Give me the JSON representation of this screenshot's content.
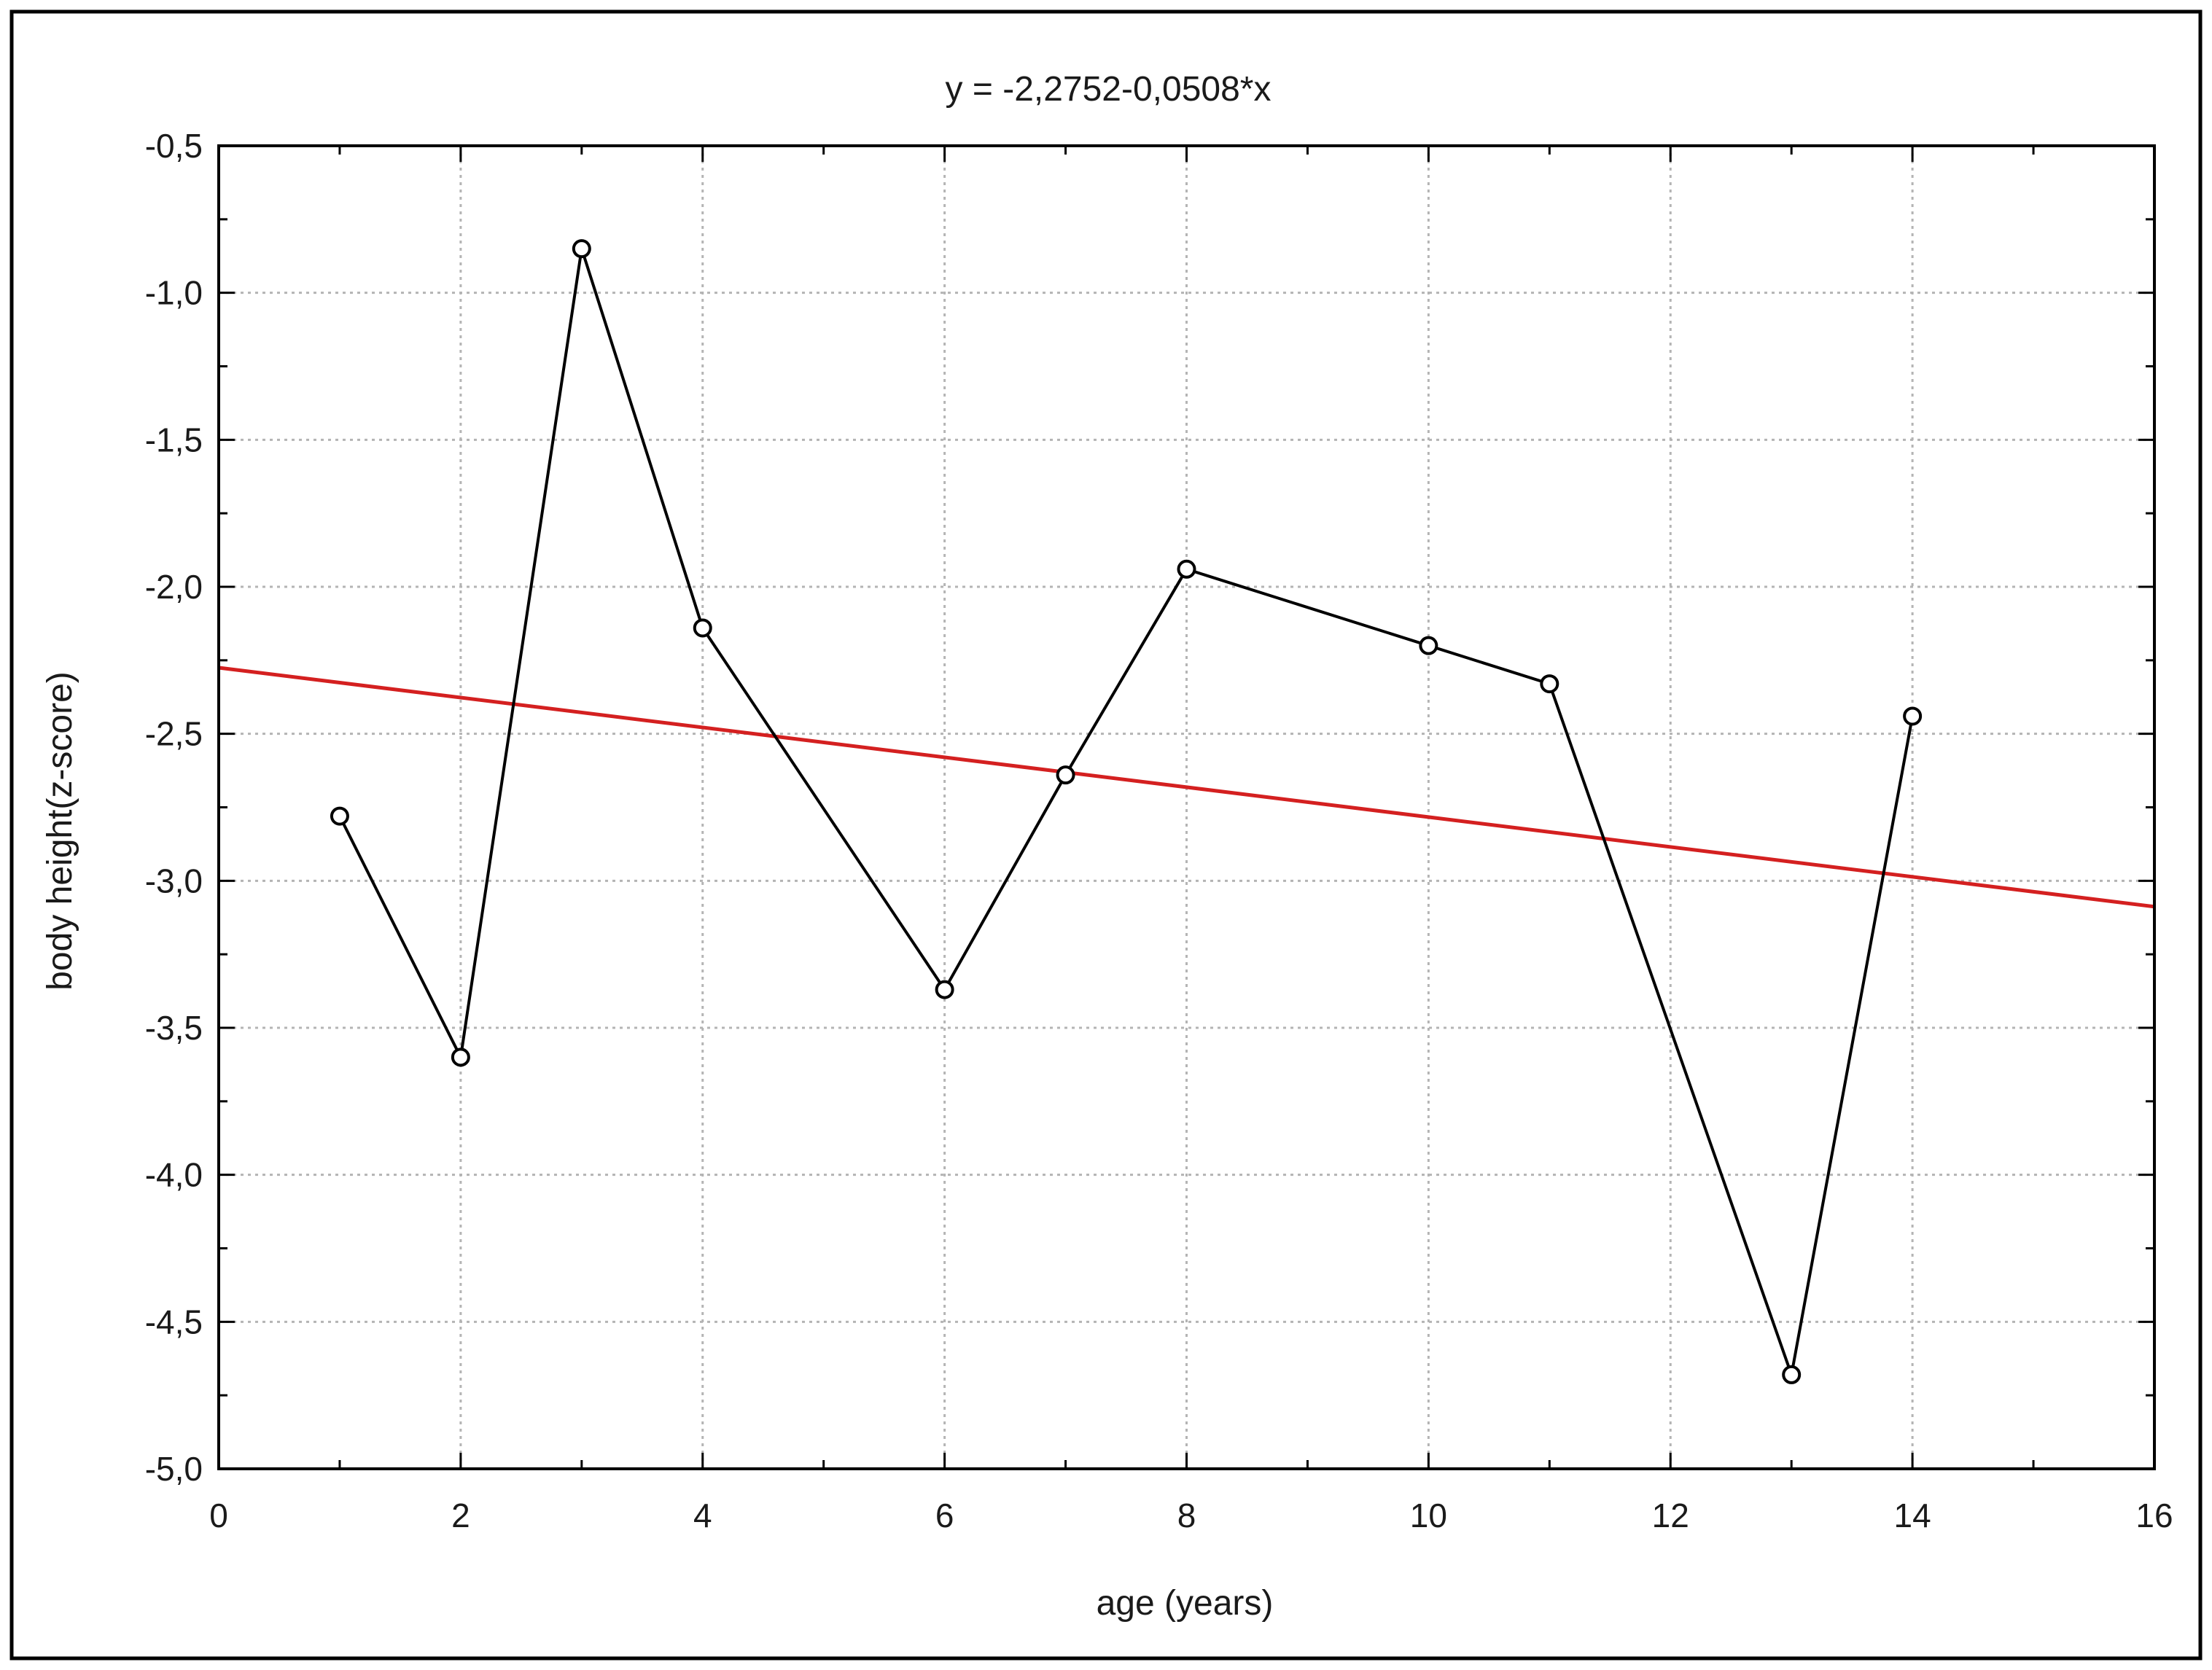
{
  "chart_data": {
    "type": "line",
    "title": "y = -2,2752-0,0508*x",
    "xlabel": "age (years)",
    "ylabel": "body height(z-score)",
    "xlim": [
      0,
      16
    ],
    "ylim": [
      -5.0,
      -0.5
    ],
    "x_ticks": [
      0,
      2,
      4,
      6,
      8,
      10,
      12,
      14,
      16
    ],
    "x_tick_labels": [
      "0",
      "2",
      "4",
      "6",
      "8",
      "10",
      "12",
      "14",
      "16"
    ],
    "y_ticks": [
      -0.5,
      -1.0,
      -1.5,
      -2.0,
      -2.5,
      -3.0,
      -3.5,
      -4.0,
      -4.5,
      -5.0
    ],
    "y_tick_labels": [
      "-0,5",
      "-1,0",
      "-1,5",
      "-2,0",
      "-2,5",
      "-3,0",
      "-3,5",
      "-4,0",
      "-4,5",
      "-5,0"
    ],
    "grid": true,
    "series": [
      {
        "x": [
          1,
          2,
          3,
          4,
          6,
          7,
          8,
          10,
          11,
          13,
          14
        ],
        "y": [
          -2.78,
          -3.6,
          -0.85,
          -2.14,
          -3.37,
          -2.64,
          -1.94,
          -2.2,
          -2.33,
          -4.68,
          -2.44
        ],
        "color": "#000000",
        "marker": "circle-open"
      }
    ],
    "fit_line": {
      "intercept": -2.2752,
      "slope": -0.0508,
      "color": "#d42020"
    }
  }
}
